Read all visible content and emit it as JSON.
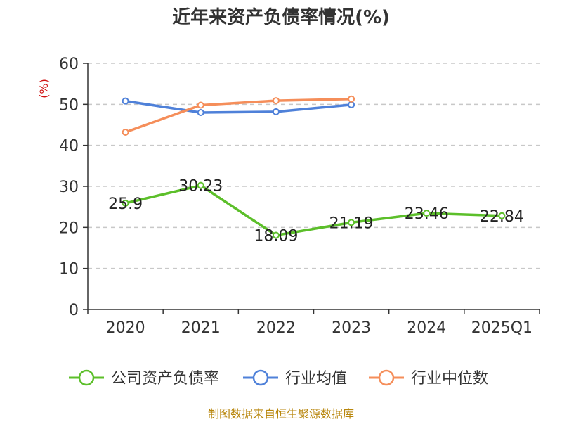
{
  "chart_data": {
    "type": "line",
    "title": "近年来资产负债率情况(%)",
    "ylabel": "(%)",
    "categories": [
      "2020",
      "2021",
      "2022",
      "2023",
      "2024",
      "2025Q1"
    ],
    "ylim": [
      0,
      60
    ],
    "yticks": [
      0,
      10,
      20,
      30,
      40,
      50,
      60
    ],
    "grid": true,
    "legend_position": "bottom",
    "series": [
      {
        "name": "公司资产负债率",
        "color": "#5cbf2a",
        "values": [
          25.9,
          30.23,
          18.09,
          21.19,
          23.46,
          22.84
        ],
        "labels": [
          "25.9",
          "30.23",
          "18.09",
          "21.19",
          "23.46",
          "22.84"
        ]
      },
      {
        "name": "行业均值",
        "color": "#4f81d9",
        "values": [
          50.8,
          48.0,
          48.2,
          49.9,
          null,
          null
        ]
      },
      {
        "name": "行业中位数",
        "color": "#f58e5a",
        "values": [
          43.2,
          49.8,
          50.9,
          51.3,
          null,
          null
        ]
      }
    ],
    "source": "制图数据来自恒生聚源数据库"
  }
}
